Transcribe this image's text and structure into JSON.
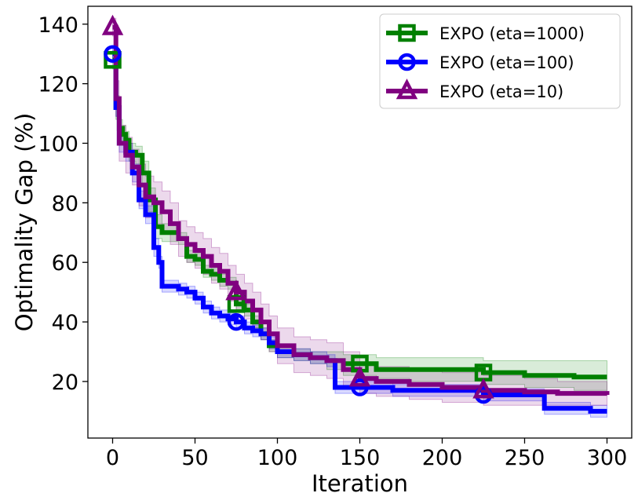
{
  "chart_data": {
    "type": "line",
    "title": "",
    "xlabel": "Iteration",
    "ylabel": "Optimality Gap (%)",
    "xlim": [
      -15,
      315
    ],
    "ylim": [
      1,
      146
    ],
    "xticks": [
      0,
      50,
      100,
      150,
      200,
      250,
      300
    ],
    "yticks": [
      20,
      40,
      60,
      80,
      100,
      120,
      140
    ],
    "xtick_labels": [
      "0",
      "50",
      "100",
      "150",
      "200",
      "250",
      "300"
    ],
    "ytick_labels": [
      "20",
      "40",
      "60",
      "80",
      "100",
      "120",
      "140"
    ],
    "grid": false,
    "legend_position": "top-right",
    "series": [
      {
        "name": "EXPO (eta=1000)",
        "color": "#008000",
        "marker": "square",
        "marker_at": [
          0,
          75,
          150,
          225
        ],
        "x": [
          0,
          2,
          4,
          6,
          8,
          10,
          14,
          18,
          22,
          26,
          30,
          40,
          45,
          50,
          55,
          60,
          65,
          70,
          75,
          80,
          85,
          90,
          95,
          100,
          110,
          120,
          130,
          140,
          150,
          160,
          180,
          200,
          225,
          250,
          280,
          300
        ],
        "y": [
          128,
          112,
          105,
          103,
          101,
          97,
          96,
          90,
          81,
          72,
          70,
          68,
          62,
          61,
          57,
          56,
          54,
          53,
          46,
          44,
          40,
          36,
          32,
          30,
          29,
          28,
          27,
          26,
          26,
          24,
          24,
          24,
          23,
          22,
          21.5,
          21.5
        ],
        "upper": [
          131,
          116,
          108,
          106,
          104,
          100,
          99,
          94,
          85,
          76,
          73,
          70,
          64,
          63,
          59,
          58,
          56,
          55,
          48,
          46,
          42,
          38,
          34,
          32,
          31,
          30,
          30,
          29,
          29,
          28,
          28,
          28,
          27,
          27,
          27,
          27
        ],
        "lower": [
          125,
          108,
          102,
          100,
          98,
          94,
          93,
          86,
          77,
          68,
          67,
          66,
          60,
          59,
          55,
          54,
          52,
          51,
          44,
          42,
          38,
          34,
          30,
          28,
          27,
          26,
          24,
          22,
          22,
          21,
          20,
          20,
          19,
          18,
          17,
          17
        ]
      },
      {
        "name": "EXPO (eta=100)",
        "color": "#0000ff",
        "marker": "circle",
        "marker_at": [
          0,
          75,
          150,
          225
        ],
        "x": [
          0,
          2,
          4,
          8,
          12,
          16,
          20,
          25,
          28,
          30,
          40,
          45,
          50,
          55,
          60,
          65,
          70,
          75,
          80,
          85,
          90,
          95,
          100,
          110,
          120,
          130,
          135,
          140,
          150,
          170,
          200,
          225,
          250,
          262,
          270,
          290,
          300
        ],
        "y": [
          130,
          112,
          100,
          97,
          90,
          81,
          76,
          65,
          60,
          52,
          51,
          50,
          48,
          45,
          43,
          42,
          41,
          40,
          38,
          37,
          36,
          33,
          30,
          29,
          28,
          27,
          18,
          18,
          18,
          17,
          17,
          15.5,
          15.5,
          11,
          11,
          10,
          10
        ],
        "upper": [
          132,
          115,
          103,
          100,
          93,
          84,
          79,
          68,
          62,
          54,
          53,
          52,
          50,
          47,
          45,
          44,
          43,
          42,
          40,
          39,
          38,
          35,
          32,
          31,
          30,
          29,
          20,
          20,
          20,
          19,
          19,
          17.5,
          17.5,
          13,
          13,
          12,
          12
        ],
        "lower": [
          128,
          109,
          97,
          94,
          87,
          78,
          73,
          62,
          58,
          50,
          49,
          48,
          46,
          43,
          41,
          40,
          39,
          38,
          36,
          35,
          34,
          31,
          28,
          27,
          26,
          25,
          16,
          16,
          16,
          15,
          15,
          13.5,
          13.5,
          9,
          9,
          8,
          8
        ]
      },
      {
        "name": "EXPO (eta=10)",
        "color": "#800080",
        "marker": "triangle",
        "marker_at": [
          0,
          75,
          150,
          225
        ],
        "x": [
          0,
          2,
          4,
          8,
          12,
          16,
          20,
          25,
          30,
          35,
          40,
          45,
          50,
          55,
          60,
          65,
          70,
          75,
          80,
          85,
          90,
          95,
          100,
          110,
          120,
          130,
          140,
          150,
          160,
          180,
          200,
          225,
          250,
          270,
          300
        ],
        "y": [
          139,
          115,
          100,
          96,
          92,
          86,
          82,
          80,
          77,
          73,
          68,
          66,
          64,
          62,
          59,
          57,
          53,
          50,
          47,
          44,
          40,
          36,
          32,
          29,
          28,
          27,
          24,
          21,
          20,
          19,
          18,
          17,
          16.5,
          16,
          15.5
        ],
        "upper": [
          142,
          121,
          106,
          102,
          98,
          93,
          89,
          87,
          84,
          80,
          74,
          72,
          70,
          68,
          65,
          63,
          59,
          56,
          53,
          50,
          46,
          42,
          38,
          35,
          34,
          33,
          30,
          26,
          25,
          24,
          23,
          22,
          21,
          20,
          19
        ],
        "lower": [
          136,
          109,
          94,
          90,
          86,
          79,
          75,
          73,
          70,
          66,
          62,
          60,
          58,
          56,
          53,
          51,
          47,
          44,
          41,
          38,
          34,
          30,
          26,
          23,
          22,
          21,
          18,
          16,
          15,
          14,
          13,
          12,
          12,
          12,
          12
        ]
      }
    ]
  }
}
